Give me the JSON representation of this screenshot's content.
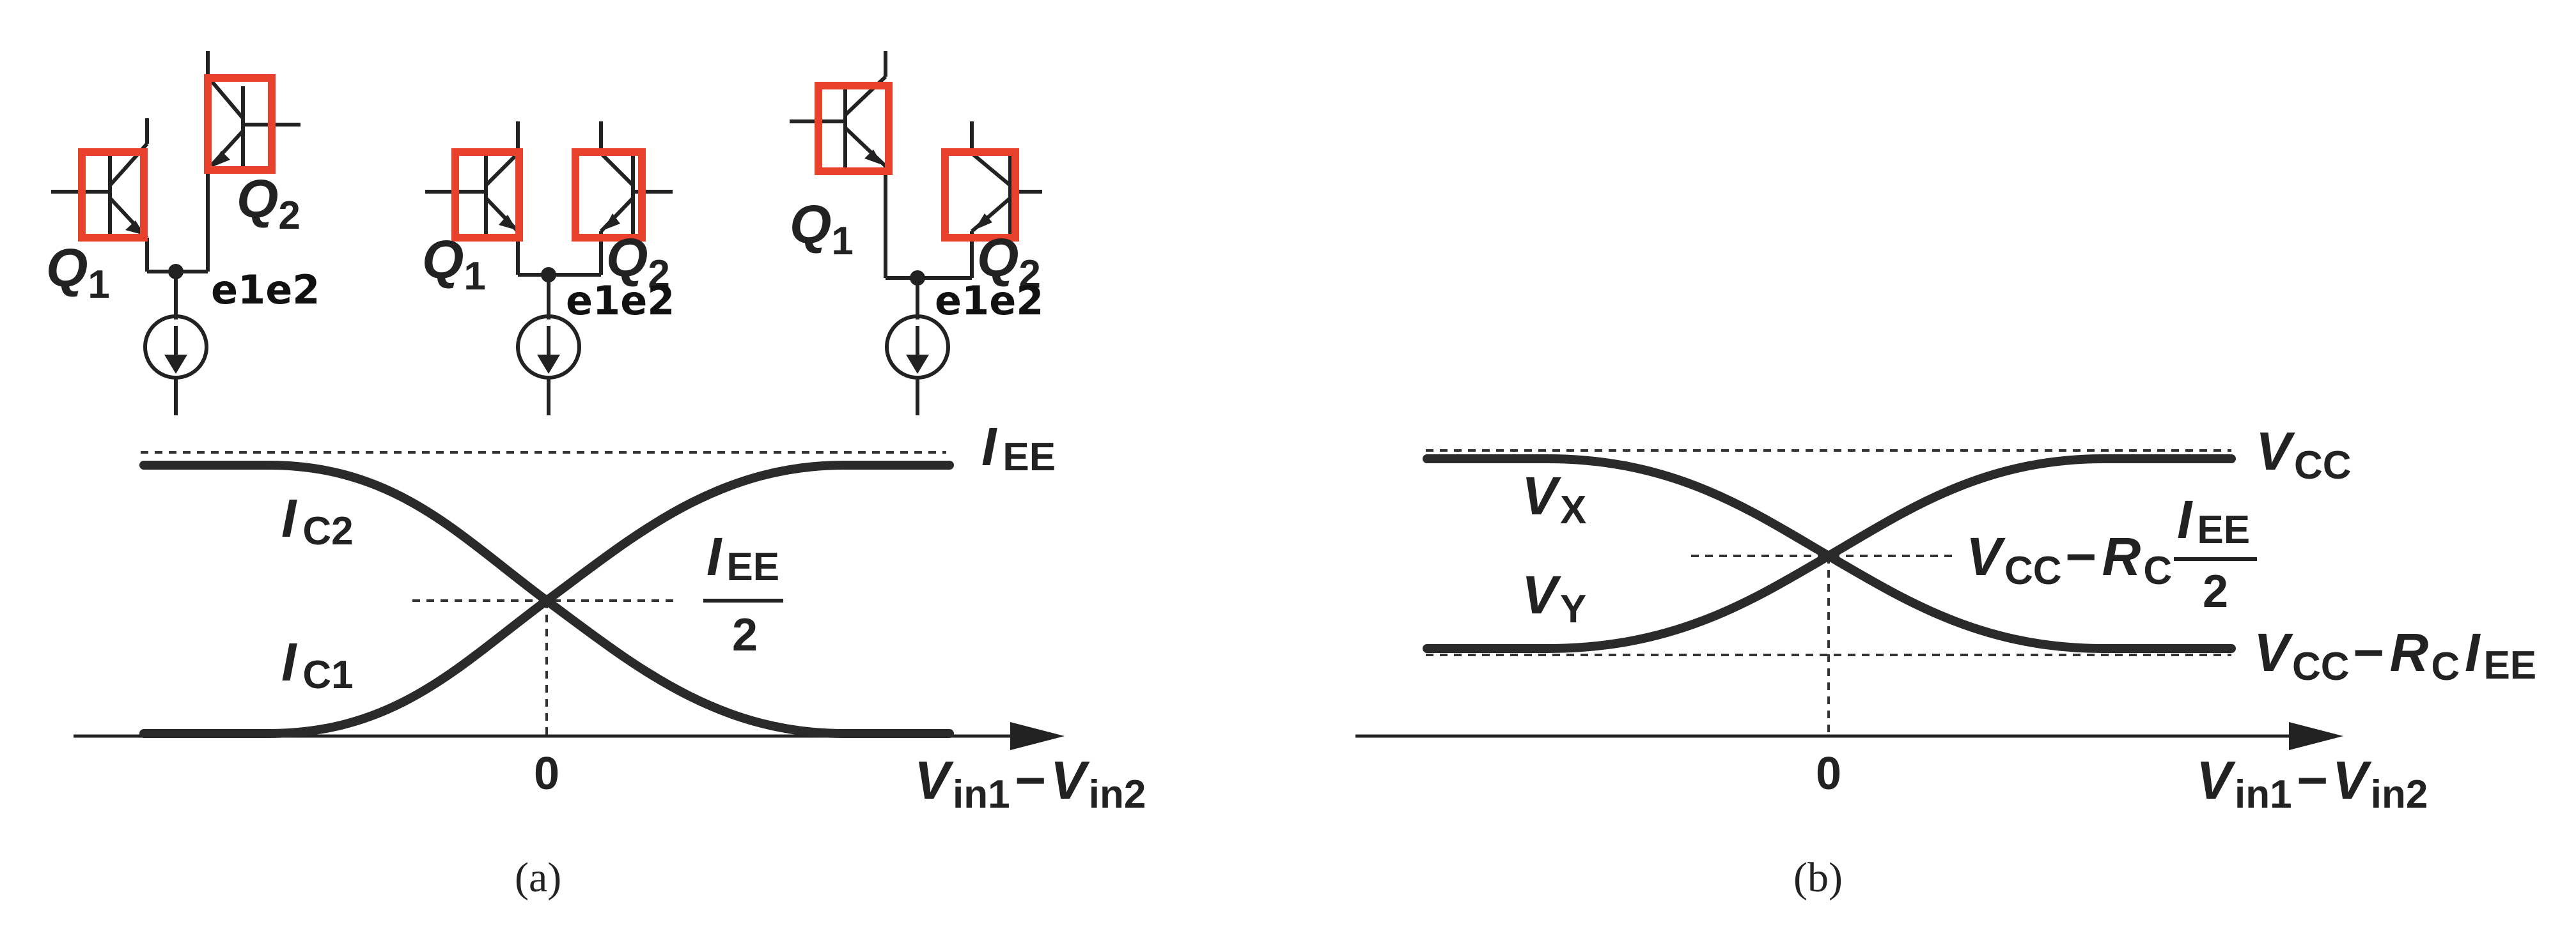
{
  "panel_a": {
    "labels": {
      "ic2_main": "I",
      "ic2_sub": "C2",
      "ic1_main": "I",
      "ic1_sub": "C1",
      "iee_main": "I",
      "iee_sub": "EE",
      "half_num_main": "I",
      "half_num_sub": "EE",
      "half_den": "2",
      "zero": "0",
      "xaxis_v1": "V",
      "xaxis_v1_sub": "in1",
      "xaxis_minus": "−",
      "xaxis_v2": "V",
      "xaxis_v2_sub": "in2"
    },
    "caption": "(a)",
    "circuits": [
      {
        "q1": "Q",
        "q1_sub": "1",
        "q2": "Q",
        "q2_sub": "2",
        "note": "e1e2"
      },
      {
        "q1": "Q",
        "q1_sub": "1",
        "q2": "Q",
        "q2_sub": "2",
        "note": "e1e2"
      },
      {
        "q1": "Q",
        "q1_sub": "1",
        "q2": "Q",
        "q2_sub": "2",
        "note": "e1e2"
      }
    ]
  },
  "panel_b": {
    "labels": {
      "vx_main": "V",
      "vx_sub": "X",
      "vy_main": "V",
      "vy_sub": "Y",
      "vcc_main": "V",
      "vcc_sub": "CC",
      "mid_v": "V",
      "mid_v_sub": "CC",
      "mid_minus": "−",
      "mid_r": "R",
      "mid_r_sub": "C",
      "mid_frac_num": "I",
      "mid_frac_num_sub": "EE",
      "mid_frac_den": "2",
      "low_v": "V",
      "low_v_sub": "CC",
      "low_minus": "−",
      "low_r": "R",
      "low_r_sub": "C",
      "low_i": "I",
      "low_i_sub": "EE",
      "zero": "0",
      "xaxis_v1": "V",
      "xaxis_v1_sub": "in1",
      "xaxis_minus": "−",
      "xaxis_v2": "V",
      "xaxis_v2_sub": "in2"
    },
    "caption": "(b)"
  },
  "colors": {
    "highlight": "#e8412c",
    "ink": "#222222"
  }
}
